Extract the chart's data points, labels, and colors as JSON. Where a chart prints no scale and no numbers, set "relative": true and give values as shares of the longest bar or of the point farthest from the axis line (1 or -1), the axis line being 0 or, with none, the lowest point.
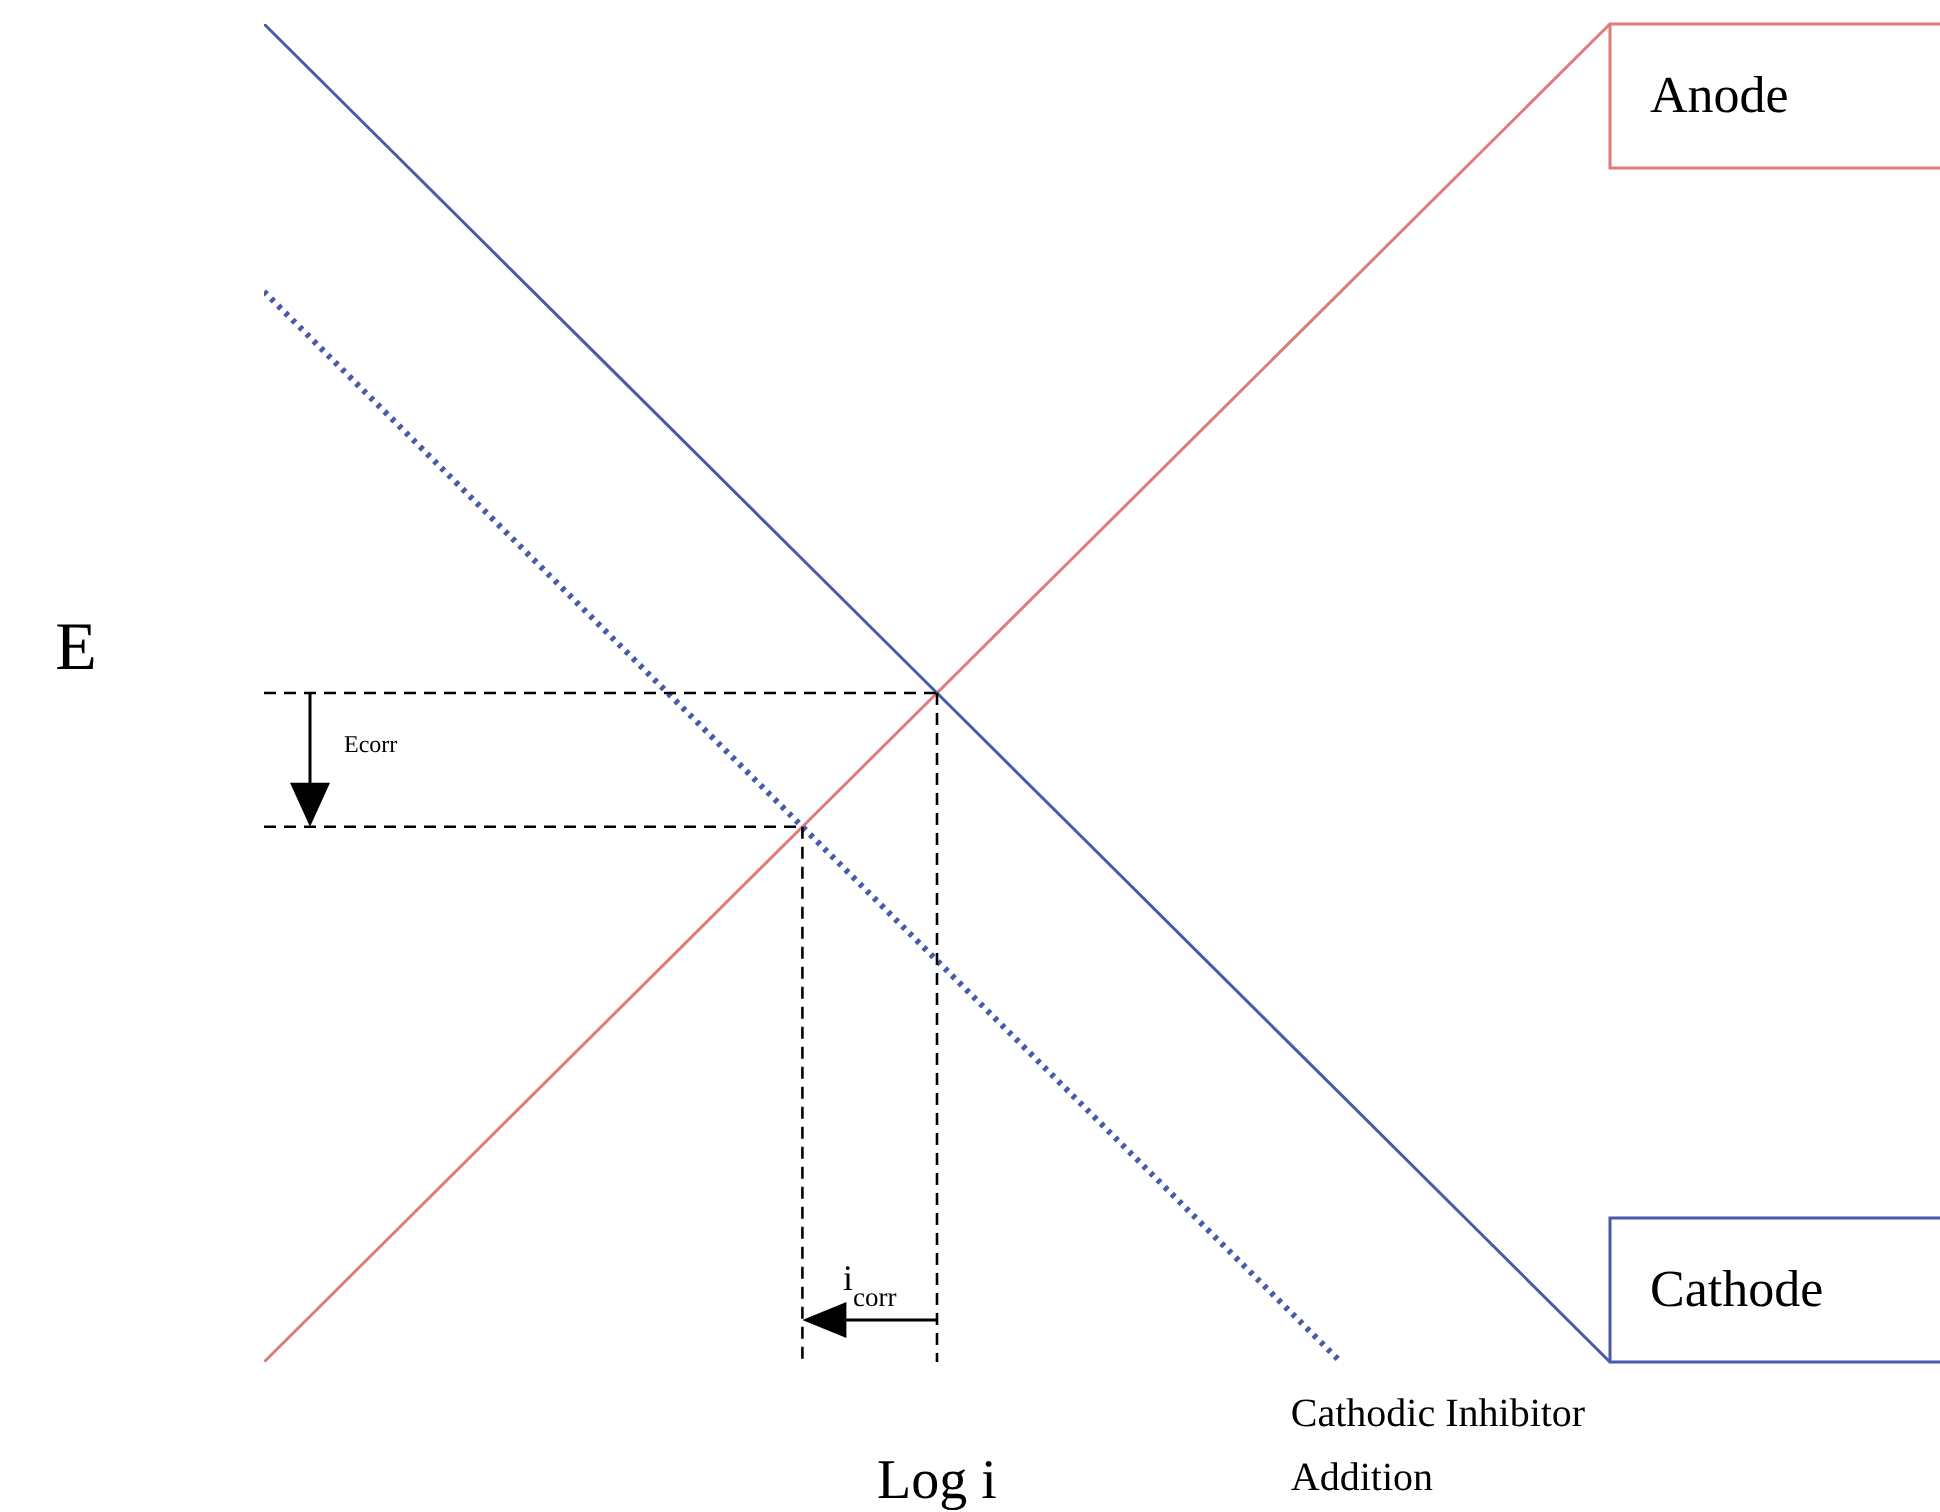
{
  "chart_data": {
    "type": "line",
    "relative": true,
    "xlabel": "Log i",
    "ylabel": "E",
    "categories": [
      null,
      null,
      null,
      null,
      null,
      null,
      null,
      null,
      null,
      null,
      null
    ],
    "series": [
      {
        "name": "Anode",
        "color": "#e07b7b",
        "values": [
          0,
          0.1,
          0.2,
          0.3,
          0.4,
          0.5,
          0.6,
          0.7,
          0.8,
          0.9,
          1
        ]
      },
      {
        "name": "Cathode",
        "color": "#4a5aa8",
        "values": [
          1,
          0.9,
          0.8,
          0.7,
          0.6,
          0.5,
          0.4,
          0.3,
          0.2,
          0.1,
          0
        ]
      },
      {
        "name": "Cathodic Inhibitor Addition",
        "color": "#4a5aa8",
        "values": [
          0.8,
          0.7,
          0.6,
          0.5,
          0.4,
          0.3,
          0.2,
          0.1,
          0,
          null,
          null
        ],
        "line_style": "dotted"
      },
      {
        "color": "#000000",
        "values": [
          0.5,
          0.5,
          0.5,
          0.5,
          0.5,
          0.5,
          null,
          null,
          null,
          null,
          null
        ],
        "line_style": "dashed"
      },
      {
        "color": "#000000",
        "values": [
          0.4,
          0.4,
          0.4,
          0.4,
          0.4,
          null,
          null,
          null,
          null,
          null,
          null
        ],
        "line_style": "dashed"
      }
    ],
    "annotations": [
      "Ecorr",
      "i$_{corr}$"
    ]
  }
}
